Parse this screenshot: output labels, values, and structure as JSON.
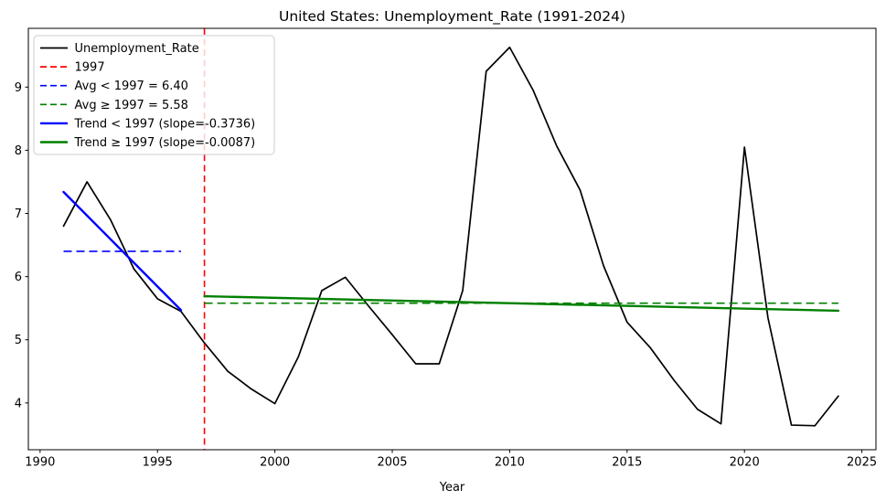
{
  "chart_data": {
    "type": "line",
    "title": "United States: Unemployment_Rate (1991-2024)",
    "xlabel": "Year",
    "ylabel": "",
    "x_ticks": [
      1990,
      1995,
      2000,
      2005,
      2010,
      2015,
      2020,
      2025
    ],
    "y_ticks": [
      4,
      5,
      6,
      7,
      8,
      9
    ],
    "xlim": [
      1989.5,
      2025.6
    ],
    "ylim": [
      3.26,
      9.93
    ],
    "grid": false,
    "legend_position": "upper left",
    "x": [
      1991,
      1992,
      1993,
      1994,
      1995,
      1996,
      1997,
      1998,
      1999,
      2000,
      2001,
      2002,
      2003,
      2004,
      2005,
      2006,
      2007,
      2008,
      2009,
      2010,
      2011,
      2012,
      2013,
      2014,
      2015,
      2016,
      2017,
      2018,
      2019,
      2020,
      2021,
      2022,
      2023,
      2024
    ],
    "series": [
      {
        "name": "Unemployment_Rate",
        "color": "#000000",
        "values": [
          6.8,
          7.5,
          6.9,
          6.12,
          5.65,
          5.45,
          4.95,
          4.5,
          4.22,
          3.99,
          4.73,
          5.78,
          5.99,
          5.53,
          5.08,
          4.62,
          4.62,
          5.78,
          9.25,
          9.63,
          8.95,
          8.07,
          7.37,
          6.17,
          5.28,
          4.87,
          4.36,
          3.9,
          3.67,
          8.05,
          5.35,
          3.65,
          3.64,
          4.11
        ]
      }
    ],
    "annotations": {
      "vline": {
        "x": 1997,
        "color": "#ff0000",
        "style": "dashed",
        "label": "1997"
      },
      "avg_pre_1997": {
        "value": 6.4,
        "x_range": [
          1991,
          1996
        ],
        "color": "#0000ff",
        "style": "dashed",
        "label": "Avg < 1997 = 6.40"
      },
      "avg_post_1997": {
        "value": 5.58,
        "x_range": [
          1997,
          2024
        ],
        "color": "#008000",
        "style": "dashed",
        "label": "Avg ≥ 1997 = 5.58"
      },
      "trend_pre_1997": {
        "slope": -0.3736,
        "x_range": [
          1991,
          1996
        ],
        "y_range": [
          7.34,
          5.47
        ],
        "color": "#0000ff",
        "style": "solid",
        "label": "Trend < 1997 (slope=-0.3736)"
      },
      "trend_post_1997": {
        "slope": -0.0087,
        "x_range": [
          1997,
          2024
        ],
        "y_range": [
          5.69,
          5.46
        ],
        "color": "#008000",
        "style": "solid",
        "label": "Trend ≥ 1997 (slope=-0.0087)"
      }
    }
  },
  "legend": {
    "items": [
      {
        "name": "unemployment-rate",
        "label": "Unemployment_Rate",
        "color": "#000000",
        "style": "solid",
        "width": 1.7
      },
      {
        "name": "vline-1997",
        "label": "1997",
        "color": "#ff0000",
        "style": "dashed",
        "width": 1.7
      },
      {
        "name": "avg-pre-1997",
        "label": "Avg < 1997 = 6.40",
        "color": "#0000ff",
        "style": "dashed",
        "width": 1.7
      },
      {
        "name": "avg-post-1997",
        "label": "Avg ≥ 1997 = 5.58",
        "color": "#008000",
        "style": "dashed",
        "width": 1.7
      },
      {
        "name": "trend-pre-1997",
        "label": "Trend < 1997 (slope=-0.3736)",
        "color": "#0000ff",
        "style": "solid",
        "width": 2.4
      },
      {
        "name": "trend-post-1997",
        "label": "Trend ≥ 1997 (slope=-0.0087)",
        "color": "#008000",
        "style": "solid",
        "width": 2.4
      }
    ]
  }
}
